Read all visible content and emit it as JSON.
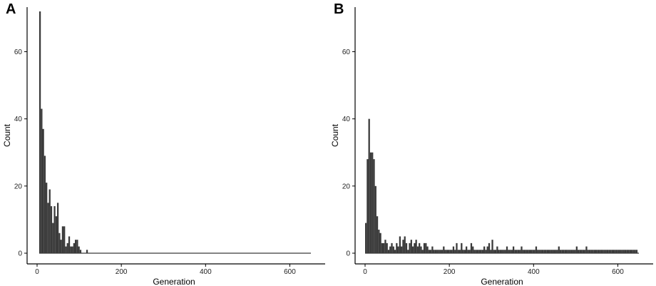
{
  "chart_data": [
    {
      "panel": "A",
      "type": "bar",
      "xlabel": "Generation",
      "ylabel": "Count",
      "xlim": [
        0,
        650
      ],
      "ylim": [
        0,
        72
      ],
      "xticks": [
        0,
        200,
        400,
        600
      ],
      "yticks": [
        0,
        20,
        40,
        60
      ],
      "grid": false,
      "bin_width": 3.85,
      "bins": [
        [
          5,
          72
        ],
        [
          8.85,
          43
        ],
        [
          12.7,
          37
        ],
        [
          16.55,
          29
        ],
        [
          20.4,
          21
        ],
        [
          24.25,
          15
        ],
        [
          28.1,
          19
        ],
        [
          31.95,
          14
        ],
        [
          35.8,
          9
        ],
        [
          39.65,
          14
        ],
        [
          43.5,
          11
        ],
        [
          47.35,
          15
        ],
        [
          51.2,
          6
        ],
        [
          55.05,
          4
        ],
        [
          58.9,
          8
        ],
        [
          62.75,
          8
        ],
        [
          66.6,
          2
        ],
        [
          70.45,
          3
        ],
        [
          74.3,
          5
        ],
        [
          78.15,
          2
        ],
        [
          82,
          2
        ],
        [
          85.85,
          3
        ],
        [
          89.7,
          4
        ],
        [
          93.55,
          4
        ],
        [
          97.4,
          2
        ],
        [
          101.25,
          1
        ],
        [
          105.1,
          0
        ],
        [
          108.95,
          0
        ],
        [
          112.8,
          0
        ],
        [
          116.65,
          1
        ]
      ],
      "baseline_end": 650
    },
    {
      "panel": "B",
      "type": "bar",
      "xlabel": "Generation",
      "ylabel": "Count",
      "xlim": [
        0,
        650
      ],
      "ylim": [
        0,
        72
      ],
      "xticks": [
        0,
        200,
        400,
        600
      ],
      "yticks": [
        0,
        20,
        40,
        60
      ],
      "grid": false,
      "bin_width": 3.85,
      "bins": [
        [
          0,
          9
        ],
        [
          3.85,
          28
        ],
        [
          7.7,
          40
        ],
        [
          11.55,
          30
        ],
        [
          15.4,
          30
        ],
        [
          19.25,
          28
        ],
        [
          23.1,
          20
        ],
        [
          26.95,
          11
        ],
        [
          30.8,
          7
        ],
        [
          34.65,
          6
        ],
        [
          38.5,
          3
        ],
        [
          42.35,
          3
        ],
        [
          46.2,
          4
        ],
        [
          50.05,
          3
        ],
        [
          53.9,
          1
        ],
        [
          57.75,
          2
        ],
        [
          61.6,
          3
        ],
        [
          65.45,
          2
        ],
        [
          69.3,
          1
        ],
        [
          73.15,
          3
        ],
        [
          77,
          2
        ],
        [
          80.85,
          5
        ],
        [
          84.7,
          2
        ],
        [
          88.55,
          4
        ],
        [
          92.4,
          5
        ],
        [
          96.25,
          3
        ],
        [
          100.1,
          1
        ],
        [
          103.95,
          3
        ],
        [
          107.8,
          4
        ],
        [
          111.65,
          2
        ],
        [
          115.5,
          3
        ],
        [
          119.35,
          4
        ],
        [
          123.2,
          2
        ],
        [
          127.05,
          3
        ],
        [
          130.9,
          2
        ],
        [
          134.75,
          1
        ],
        [
          138.6,
          3
        ],
        [
          142.45,
          3
        ],
        [
          146.3,
          2
        ],
        [
          150.15,
          1
        ],
        [
          154,
          1
        ],
        [
          157.85,
          2
        ],
        [
          161.7,
          1
        ],
        [
          165.55,
          1
        ],
        [
          169.4,
          1
        ],
        [
          173.25,
          1
        ],
        [
          177.1,
          1
        ],
        [
          180.95,
          1
        ],
        [
          184.8,
          2
        ],
        [
          188.65,
          1
        ],
        [
          192.5,
          1
        ],
        [
          196.35,
          1
        ],
        [
          200.2,
          1
        ],
        [
          204.05,
          1
        ],
        [
          207.9,
          2
        ],
        [
          211.75,
          1
        ],
        [
          215.6,
          3
        ],
        [
          219.45,
          1
        ],
        [
          223.3,
          1
        ],
        [
          227.15,
          3
        ],
        [
          231,
          1
        ],
        [
          234.85,
          1
        ],
        [
          238.7,
          2
        ],
        [
          242.55,
          1
        ],
        [
          246.4,
          1
        ],
        [
          250.25,
          3
        ],
        [
          254.1,
          2
        ],
        [
          257.95,
          1
        ],
        [
          261.8,
          1
        ],
        [
          265.65,
          1
        ],
        [
          269.5,
          1
        ],
        [
          273.35,
          1
        ],
        [
          277.2,
          1
        ],
        [
          281.05,
          2
        ],
        [
          284.9,
          1
        ],
        [
          288.75,
          2
        ],
        [
          292.6,
          3
        ],
        [
          296.45,
          1
        ],
        [
          300.3,
          4
        ],
        [
          304.15,
          1
        ],
        [
          308,
          1
        ],
        [
          311.85,
          2
        ],
        [
          315.7,
          1
        ],
        [
          319.55,
          1
        ],
        [
          323.4,
          1
        ],
        [
          327.25,
          1
        ],
        [
          331.1,
          1
        ],
        [
          334.95,
          2
        ],
        [
          338.8,
          1
        ],
        [
          342.65,
          1
        ],
        [
          346.5,
          1
        ],
        [
          350.35,
          2
        ],
        [
          354.2,
          1
        ],
        [
          358.05,
          1
        ],
        [
          361.9,
          1
        ],
        [
          365.75,
          1
        ],
        [
          369.6,
          2
        ],
        [
          373.45,
          1
        ],
        [
          377.3,
          1
        ],
        [
          381.15,
          1
        ],
        [
          385,
          1
        ],
        [
          388.85,
          1
        ],
        [
          392.7,
          1
        ],
        [
          396.55,
          1
        ],
        [
          400.4,
          1
        ],
        [
          404.25,
          2
        ],
        [
          408.1,
          1
        ],
        [
          411.95,
          1
        ],
        [
          415.8,
          1
        ],
        [
          419.65,
          1
        ],
        [
          423.5,
          1
        ],
        [
          427.35,
          1
        ],
        [
          431.2,
          1
        ],
        [
          435.05,
          1
        ],
        [
          438.9,
          1
        ],
        [
          442.75,
          1
        ],
        [
          446.6,
          1
        ],
        [
          450.45,
          1
        ],
        [
          454.3,
          1
        ],
        [
          458.15,
          2
        ],
        [
          462,
          1
        ],
        [
          465.85,
          1
        ],
        [
          469.7,
          1
        ],
        [
          473.55,
          1
        ],
        [
          477.4,
          1
        ],
        [
          481.25,
          1
        ],
        [
          485.1,
          1
        ],
        [
          488.95,
          1
        ],
        [
          492.8,
          1
        ],
        [
          496.65,
          1
        ],
        [
          500.5,
          2
        ],
        [
          504.35,
          1
        ],
        [
          508.2,
          1
        ],
        [
          512.05,
          1
        ],
        [
          515.9,
          1
        ],
        [
          519.75,
          1
        ],
        [
          523.6,
          2
        ],
        [
          527.45,
          1
        ],
        [
          531.3,
          1
        ],
        [
          535.15,
          1
        ],
        [
          539,
          1
        ],
        [
          542.85,
          1
        ],
        [
          546.7,
          1
        ],
        [
          550.55,
          1
        ],
        [
          554.4,
          1
        ],
        [
          558.25,
          1
        ],
        [
          562.1,
          1
        ],
        [
          565.95,
          1
        ],
        [
          569.8,
          1
        ],
        [
          573.65,
          1
        ],
        [
          577.5,
          1
        ],
        [
          581.35,
          1
        ],
        [
          585.2,
          1
        ],
        [
          589.05,
          1
        ],
        [
          592.9,
          1
        ],
        [
          596.75,
          1
        ],
        [
          600.6,
          1
        ],
        [
          604.45,
          1
        ],
        [
          608.3,
          1
        ],
        [
          612.15,
          1
        ],
        [
          616,
          1
        ],
        [
          619.85,
          1
        ],
        [
          623.7,
          1
        ],
        [
          627.55,
          1
        ],
        [
          631.4,
          1
        ],
        [
          635.25,
          1
        ],
        [
          639.1,
          1
        ],
        [
          642.95,
          1
        ]
      ],
      "baseline_end": 650
    }
  ],
  "colors": {
    "bar": "#3a3a3a",
    "axis": "#000000",
    "text": "#222222"
  },
  "panels": {
    "a_label": "A",
    "b_label": "B"
  }
}
